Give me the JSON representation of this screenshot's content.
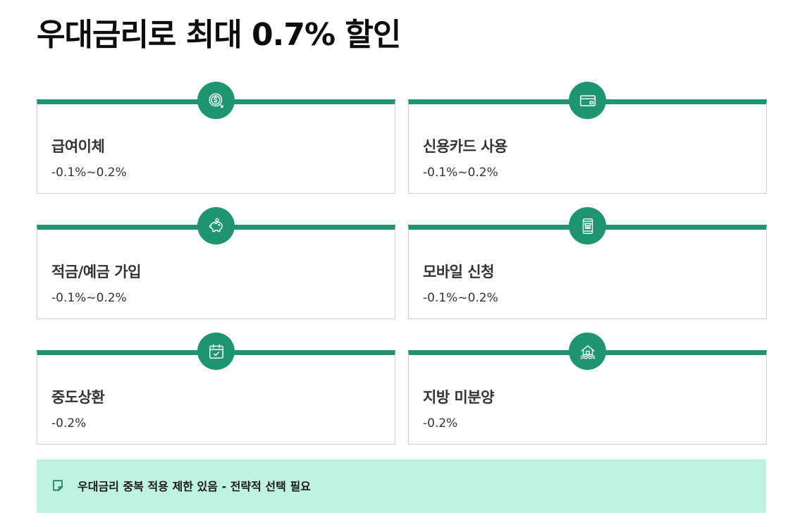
{
  "title": "우대금리로 최대 0.7% 할인",
  "accent_color": "#1f9470",
  "notice_bg_color": "#c0f2e0",
  "cards": [
    {
      "icon": "dollar-coin-icon",
      "label": "급여이체",
      "value": "-0.1%~0.2%"
    },
    {
      "icon": "credit-card-icon",
      "label": "신용카드 사용",
      "value": "-0.1%~0.2%"
    },
    {
      "icon": "piggy-bank-icon",
      "label": "적금/예금 가입",
      "value": "-0.1%~0.2%"
    },
    {
      "icon": "mobile-shop-icon",
      "label": "모바일 신청",
      "value": "-0.1%~0.2%"
    },
    {
      "icon": "calendar-check-icon",
      "label": "중도상환",
      "value": "-0.2%"
    },
    {
      "icon": "house-water-icon",
      "label": "지방 미분양",
      "value": "-0.2%"
    }
  ],
  "notice": {
    "icon": "sticky-note-icon",
    "text": "우대금리 중복 적용 제한 있음 - 전략적 선택 필요"
  }
}
